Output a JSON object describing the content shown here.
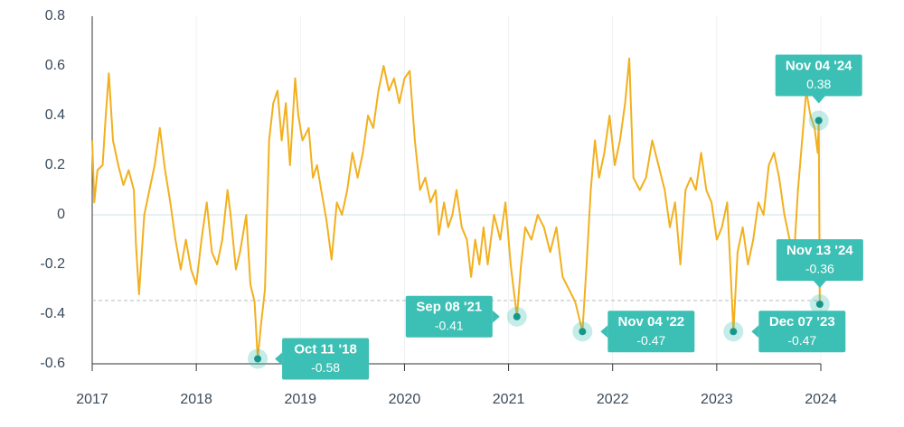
{
  "chart_data": {
    "type": "line",
    "x": [
      2017.0,
      2017.02,
      2017.05,
      2017.1,
      2017.13,
      2017.16,
      2017.2,
      2017.25,
      2017.3,
      2017.35,
      2017.4,
      2017.42,
      2017.45,
      2017.5,
      2017.55,
      2017.6,
      2017.65,
      2017.7,
      2017.75,
      2017.8,
      2017.85,
      2017.9,
      2017.95,
      2018.0,
      2018.05,
      2018.1,
      2018.15,
      2018.2,
      2018.25,
      2018.3,
      2018.33,
      2018.38,
      2018.42,
      2018.48,
      2018.52,
      2018.56,
      2018.59,
      2018.62,
      2018.66,
      2018.7,
      2018.74,
      2018.78,
      2018.82,
      2018.86,
      2018.9,
      2018.95,
      2018.98,
      2019.02,
      2019.08,
      2019.12,
      2019.16,
      2019.2,
      2019.25,
      2019.3,
      2019.35,
      2019.4,
      2019.45,
      2019.5,
      2019.55,
      2019.6,
      2019.65,
      2019.7,
      2019.75,
      2019.8,
      2019.85,
      2019.9,
      2019.95,
      2020.0,
      2020.05,
      2020.1,
      2020.15,
      2020.2,
      2020.25,
      2020.3,
      2020.33,
      2020.38,
      2020.42,
      2020.46,
      2020.5,
      2020.55,
      2020.6,
      2020.64,
      2020.68,
      2020.72,
      2020.76,
      2020.8,
      2020.86,
      2020.92,
      2020.97,
      2021.02,
      2021.08,
      2021.12,
      2021.16,
      2021.22,
      2021.28,
      2021.34,
      2021.4,
      2021.46,
      2021.52,
      2021.58,
      2021.64,
      2021.71,
      2021.75,
      2021.79,
      2021.83,
      2021.87,
      2021.92,
      2021.97,
      2022.02,
      2022.07,
      2022.12,
      2022.16,
      2022.2,
      2022.26,
      2022.32,
      2022.38,
      2022.44,
      2022.5,
      2022.55,
      2022.6,
      2022.65,
      2022.7,
      2022.75,
      2022.8,
      2022.85,
      2022.9,
      2022.95,
      2023.0,
      2023.05,
      2023.1,
      2023.13,
      2023.16,
      2023.2,
      2023.25,
      2023.3,
      2023.35,
      2023.4,
      2023.45,
      2023.5,
      2023.55,
      2023.6,
      2023.65,
      2023.7,
      2023.74,
      2023.78,
      2023.82,
      2023.86,
      2023.9,
      2023.94,
      2023.97,
      2023.98,
      2023.99
    ],
    "series": [
      {
        "color": "#f2b01e",
        "values": [
          0.3,
          0.05,
          0.18,
          0.2,
          0.4,
          0.57,
          0.3,
          0.2,
          0.12,
          0.18,
          0.1,
          -0.12,
          -0.32,
          0.0,
          0.1,
          0.2,
          0.35,
          0.18,
          0.05,
          -0.1,
          -0.22,
          -0.1,
          -0.22,
          -0.28,
          -0.1,
          0.05,
          -0.15,
          -0.2,
          -0.1,
          0.1,
          0.0,
          -0.22,
          -0.15,
          0.0,
          -0.28,
          -0.35,
          -0.58,
          -0.45,
          -0.3,
          0.3,
          0.45,
          0.5,
          0.3,
          0.45,
          0.2,
          0.55,
          0.4,
          0.3,
          0.35,
          0.15,
          0.2,
          0.1,
          -0.02,
          -0.18,
          0.05,
          0.0,
          0.1,
          0.25,
          0.15,
          0.25,
          0.4,
          0.35,
          0.5,
          0.6,
          0.5,
          0.55,
          0.45,
          0.55,
          0.58,
          0.3,
          0.1,
          0.15,
          0.05,
          0.1,
          -0.08,
          0.05,
          -0.05,
          0.0,
          0.1,
          -0.05,
          -0.1,
          -0.25,
          -0.1,
          -0.2,
          -0.05,
          -0.2,
          0.0,
          -0.1,
          0.05,
          -0.2,
          -0.41,
          -0.2,
          -0.05,
          -0.1,
          0.0,
          -0.05,
          -0.15,
          -0.05,
          -0.25,
          -0.3,
          -0.35,
          -0.47,
          -0.2,
          0.1,
          0.3,
          0.15,
          0.25,
          0.4,
          0.2,
          0.3,
          0.45,
          0.63,
          0.15,
          0.1,
          0.15,
          0.3,
          0.2,
          0.1,
          -0.05,
          0.05,
          -0.2,
          0.1,
          0.15,
          0.1,
          0.25,
          0.1,
          0.05,
          -0.1,
          -0.05,
          0.05,
          -0.2,
          -0.47,
          -0.15,
          -0.05,
          -0.2,
          -0.1,
          0.05,
          0.0,
          0.2,
          0.25,
          0.15,
          0.0,
          -0.1,
          -0.18,
          0.1,
          0.3,
          0.5,
          0.4,
          0.35,
          0.25,
          0.38,
          -0.36
        ]
      }
    ],
    "xlim": [
      2017,
      2024
    ],
    "xticks": [
      2017,
      2018,
      2019,
      2020,
      2021,
      2022,
      2023,
      2024
    ],
    "ylim": [
      -0.6,
      0.8
    ],
    "yticks": [
      0.8,
      0.6,
      0.4,
      0.2,
      0,
      -0.2,
      -0.4,
      -0.6
    ],
    "reference_line": -0.345,
    "annotations": [
      {
        "x": 2018.59,
        "y": -0.58,
        "label": "Oct 11 '18"
      },
      {
        "x": 2021.08,
        "y": -0.41,
        "label": "Sep 08 '21"
      },
      {
        "x": 2021.71,
        "y": -0.47,
        "label": "Nov 04 '22"
      },
      {
        "x": 2023.16,
        "y": -0.47,
        "label": "Dec 07 '23"
      },
      {
        "x": 2023.98,
        "y": 0.38,
        "label": "Nov 04 '24"
      },
      {
        "x": 2023.99,
        "y": -0.36,
        "label": "Nov 13 '24"
      }
    ],
    "annotation_color": "#3cbfb4"
  }
}
